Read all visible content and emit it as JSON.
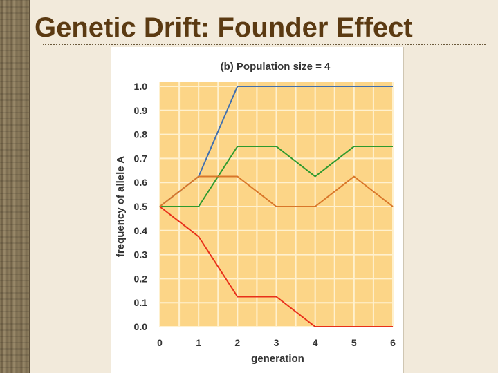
{
  "slide": {
    "title": "Genetic Drift: Founder Effect"
  },
  "chart_data": {
    "type": "line",
    "title": "(b) Population size = 4",
    "xlabel": "generation",
    "ylabel": "frequency of allele A",
    "x": [
      0,
      1,
      2,
      3,
      4,
      5,
      6
    ],
    "x_ticks": [
      "0",
      "1",
      "2",
      "3",
      "4",
      "5",
      "6"
    ],
    "y_ticks": [
      "0.0",
      "0.1",
      "0.2",
      "0.3",
      "0.4",
      "0.5",
      "0.6",
      "0.7",
      "0.8",
      "0.9",
      "1.0"
    ],
    "xlim": [
      0,
      6
    ],
    "ylim": [
      0,
      1.0
    ],
    "grid": true,
    "plot_background": "#fcd587",
    "grid_color": "#fff1cf",
    "series": [
      {
        "color": "#3f6fb0",
        "values": [
          0.5,
          0.625,
          1.0,
          1.0,
          1.0,
          1.0,
          1.0
        ]
      },
      {
        "color": "#2e9a2e",
        "values": [
          0.5,
          0.5,
          0.75,
          0.75,
          0.625,
          0.75,
          0.75
        ]
      },
      {
        "color": "#d9772a",
        "values": [
          0.5,
          0.625,
          0.625,
          0.5,
          0.5,
          0.625,
          0.5
        ]
      },
      {
        "color": "#e8301a",
        "values": [
          0.5,
          0.375,
          0.125,
          0.125,
          0.0,
          0.0,
          0.0
        ]
      }
    ]
  }
}
